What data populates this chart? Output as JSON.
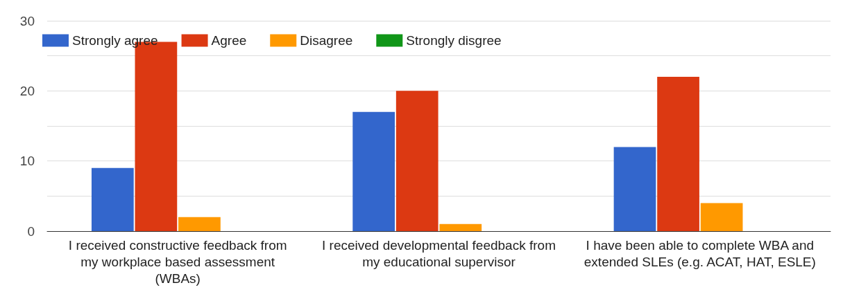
{
  "chart_data": {
    "type": "bar",
    "categories": [
      "I received constructive feedback from\nmy workplace based assessment\n(WBAs)",
      "I received developmental feedback from\nmy educational supervisor",
      "I have been able to complete WBA and\nextended SLEs (e.g. ACAT, HAT, ESLE)"
    ],
    "series": [
      {
        "name": "Strongly agree",
        "color": "#3366cc",
        "values": [
          9,
          17,
          12
        ]
      },
      {
        "name": "Agree",
        "color": "#dc3912",
        "values": [
          27,
          20,
          22
        ]
      },
      {
        "name": "Disagree",
        "color": "#ff9900",
        "values": [
          2,
          1,
          4
        ]
      },
      {
        "name": "Strongly disgree",
        "color": "#109618",
        "values": [
          0,
          0,
          0
        ]
      }
    ],
    "ylim": [
      0,
      30
    ],
    "yticks": [
      0,
      {
        "value": 5,
        "label": null
      },
      10,
      {
        "value": 15,
        "label": null
      },
      20,
      {
        "value": 25,
        "label": null
      },
      30
    ],
    "grid": "y",
    "legend": "top left"
  }
}
